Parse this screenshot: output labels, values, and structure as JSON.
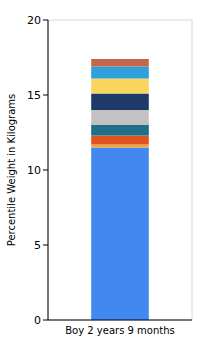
{
  "chart_data": {
    "type": "bar",
    "stacked": true,
    "ylabel": "Percentile Weight in Kilograms",
    "categories": [
      "Boy 2 years 9 months"
    ],
    "series": [
      {
        "color": "#4289ef",
        "values": [
          11.5
        ]
      },
      {
        "color": "#f2a53a",
        "values": [
          0.2
        ]
      },
      {
        "color": "#e0531c",
        "values": [
          0.6
        ]
      },
      {
        "color": "#1d6f8a",
        "values": [
          0.7
        ]
      },
      {
        "color": "#c2c2c2",
        "values": [
          1.0
        ]
      },
      {
        "color": "#1e3a68",
        "values": [
          1.1
        ]
      },
      {
        "color": "#f8d65e",
        "values": [
          1.0
        ]
      },
      {
        "color": "#2ea0da",
        "values": [
          0.8
        ]
      },
      {
        "color": "#c4674f",
        "values": [
          0.5
        ]
      }
    ],
    "ylim": [
      0,
      20
    ],
    "yticks": [
      0,
      5,
      10,
      15,
      20
    ],
    "grid": false
  }
}
